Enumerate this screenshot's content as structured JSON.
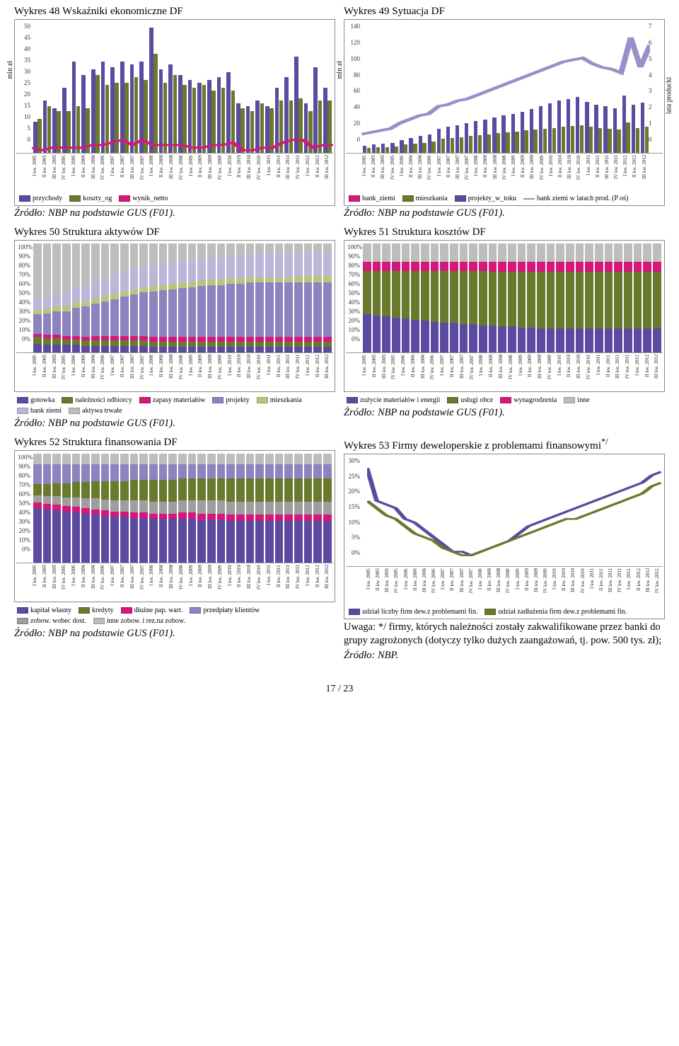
{
  "quarters": [
    "I kw. 2005",
    "II kw. 2005",
    "III kw. 2005",
    "IV kw. 2005",
    "I kw. 2006",
    "II kw. 2006",
    "III kw. 2006",
    "IV kw. 2006",
    "I kw. 2007",
    "II kw. 2007",
    "III kw. 2007",
    "IV kw. 2007",
    "I kw. 2008",
    "II kw. 2008",
    "III kw. 2008",
    "IV kw. 2008",
    "I kw. 2009",
    "II kw. 2009",
    "III kw. 2009",
    "IV kw. 2009",
    "I kw. 2010",
    "II kw. 2010",
    "III kw. 2010",
    "IV kw. 2010",
    "I kw. 2011",
    "II kw. 2011",
    "III kw. 2011",
    "IV kw. 2011",
    "I kw. 2012",
    "II kw. 2012",
    "III kw. 2012"
  ],
  "chart48": {
    "title": "Wykres 48 Wskaźniki ekonomiczne DF",
    "ylabel": "mln zł",
    "ylim": [
      0,
      50
    ],
    "ytick_step": 5,
    "colors": {
      "przychody": "#5b4a9f",
      "koszty": "#6a7a2d",
      "wynik": "#d6177a"
    },
    "series": {
      "przychody": [
        12,
        20,
        17,
        25,
        35,
        30,
        32,
        35,
        33,
        35,
        34,
        35,
        48,
        32,
        34,
        30,
        28,
        27,
        28,
        29,
        31,
        19,
        18,
        20,
        18,
        25,
        29,
        37,
        19,
        33,
        25
      ],
      "koszty": [
        13,
        18,
        16,
        16,
        18,
        17,
        30,
        26,
        27,
        27,
        29,
        28,
        38,
        27,
        30,
        26,
        25,
        26,
        24,
        25,
        24,
        17,
        16,
        19,
        17,
        20,
        20,
        21,
        16,
        20,
        20
      ],
      "wynik": [
        2,
        1,
        2,
        2,
        2,
        2,
        3,
        3,
        4,
        5,
        3,
        5,
        3,
        3,
        3,
        3,
        2,
        2,
        3,
        3,
        4,
        1,
        1,
        2,
        2,
        4,
        5,
        5,
        2,
        3,
        3
      ]
    },
    "legend": [
      [
        "przychody",
        "#5b4a9f"
      ],
      [
        "koszty_og",
        "#6a7a2d"
      ],
      [
        "wynik_netto",
        "#d6177a"
      ]
    ],
    "source": "Źródło: NBP na podstawie GUS (F01)."
  },
  "chart49": {
    "title": "Wykres 49 Sytuacja DF",
    "ylabel": "mln zł",
    "y2label": "lata producki",
    "ylim": [
      0,
      140
    ],
    "ytick_step": 20,
    "y2lim": [
      0,
      7
    ],
    "colors": {
      "bank_ziemi": "#d6177a",
      "projekty": "#5b4a9f",
      "mieszkania": "#6a7a2d",
      "lata": "#9a8fc9"
    },
    "bank_ziemi": [
      22,
      23,
      24,
      26,
      30,
      34,
      36,
      40,
      55,
      60,
      68,
      72,
      78,
      80,
      85,
      90,
      95,
      100,
      105,
      108,
      110,
      112,
      114,
      115,
      112,
      110,
      108,
      105,
      118,
      108,
      110
    ],
    "projekty": [
      8,
      9,
      10,
      11,
      14,
      16,
      18,
      20,
      26,
      28,
      30,
      32,
      34,
      36,
      38,
      40,
      42,
      44,
      47,
      50,
      53,
      56,
      58,
      60,
      55,
      52,
      50,
      48,
      62,
      52,
      54
    ],
    "mieszkania": [
      5,
      6,
      6,
      7,
      9,
      10,
      11,
      12,
      15,
      16,
      17,
      18,
      19,
      20,
      21,
      22,
      23,
      24,
      25,
      26,
      27,
      28,
      29,
      30,
      28,
      27,
      26,
      25,
      33,
      27,
      28
    ],
    "lata": [
      1.0,
      1.1,
      1.2,
      1.3,
      1.6,
      1.8,
      2.0,
      2.1,
      2.5,
      2.6,
      2.8,
      2.9,
      3.1,
      3.3,
      3.5,
      3.7,
      3.9,
      4.1,
      4.3,
      4.5,
      4.7,
      4.9,
      5.0,
      5.1,
      4.8,
      4.6,
      4.5,
      4.3,
      6.2,
      4.6,
      5.8
    ],
    "legend": [
      [
        "bank_ziemi",
        "#d6177a",
        "swatch"
      ],
      [
        "mieszkania",
        "#6a7a2d",
        "swatch"
      ],
      [
        "projekty_w_toku",
        "#5b4a9f",
        "swatch"
      ],
      [
        "bank ziemi w latach prod. (P oś)",
        "#9a8fc9",
        "line"
      ]
    ],
    "source": "Źródło: NBP na podstawie GUS (F01)."
  },
  "chart50": {
    "title": "Wykres 50 Struktura aktywów DF",
    "ylim": [
      0,
      100
    ],
    "ytick_step": 10,
    "ysuffix": "%",
    "stacks": [
      "gotowka",
      "naleznosci",
      "zapasy",
      "projekty",
      "mieszkania",
      "bank_ziemi",
      "aktywa_trwale"
    ],
    "stack_colors": {
      "gotowka": "#5b4a9f",
      "naleznosci": "#6a7a2d",
      "zapasy": "#d6177a",
      "projekty": "#8d83bf",
      "mieszkania": "#b5c77e",
      "bank_ziemi": "#bcb6d9",
      "aktywa_trwale": "#bdbdbd"
    },
    "data": [
      [
        8,
        6,
        3,
        18,
        4,
        10,
        51
      ],
      [
        7,
        6,
        3,
        20,
        4,
        11,
        49
      ],
      [
        7,
        6,
        3,
        22,
        4,
        12,
        46
      ],
      [
        7,
        5,
        3,
        23,
        5,
        13,
        44
      ],
      [
        7,
        5,
        3,
        26,
        5,
        14,
        40
      ],
      [
        6,
        5,
        3,
        28,
        5,
        15,
        38
      ],
      [
        6,
        5,
        4,
        30,
        5,
        16,
        34
      ],
      [
        6,
        5,
        4,
        32,
        5,
        17,
        31
      ],
      [
        6,
        5,
        4,
        34,
        5,
        18,
        28
      ],
      [
        6,
        5,
        4,
        36,
        5,
        18,
        26
      ],
      [
        6,
        5,
        4,
        38,
        5,
        19,
        23
      ],
      [
        6,
        5,
        4,
        40,
        5,
        19,
        21
      ],
      [
        5,
        5,
        4,
        42,
        5,
        19,
        20
      ],
      [
        5,
        5,
        4,
        43,
        5,
        20,
        18
      ],
      [
        5,
        5,
        4,
        44,
        5,
        20,
        17
      ],
      [
        5,
        5,
        4,
        45,
        5,
        20,
        16
      ],
      [
        5,
        5,
        4,
        46,
        5,
        20,
        15
      ],
      [
        5,
        5,
        4,
        47,
        5,
        20,
        14
      ],
      [
        5,
        5,
        4,
        48,
        5,
        20,
        13
      ],
      [
        5,
        5,
        4,
        48,
        5,
        21,
        12
      ],
      [
        5,
        5,
        4,
        49,
        5,
        21,
        11
      ],
      [
        5,
        5,
        4,
        49,
        5,
        21,
        11
      ],
      [
        5,
        5,
        4,
        50,
        5,
        21,
        10
      ],
      [
        5,
        5,
        4,
        50,
        5,
        21,
        10
      ],
      [
        5,
        5,
        4,
        50,
        5,
        21,
        10
      ],
      [
        5,
        5,
        4,
        50,
        5,
        22,
        9
      ],
      [
        5,
        5,
        4,
        50,
        5,
        22,
        9
      ],
      [
        5,
        5,
        4,
        50,
        6,
        22,
        8
      ],
      [
        5,
        5,
        4,
        50,
        6,
        22,
        8
      ],
      [
        5,
        5,
        4,
        50,
        6,
        22,
        8
      ],
      [
        5,
        5,
        4,
        50,
        6,
        22,
        8
      ]
    ],
    "legend": [
      [
        "gotowka",
        "#5b4a9f"
      ],
      [
        "należności odbiorcy",
        "#6a7a2d"
      ],
      [
        "zapasy materiałów",
        "#d6177a"
      ],
      [
        "projekty",
        "#8d83bf"
      ],
      [
        "mieszkania",
        "#b5c77e"
      ],
      [
        "bank ziemi",
        "#bcb6d9"
      ],
      [
        "aktywa trwałe",
        "#bdbdbd"
      ]
    ],
    "source": "Źródło: NBP na podstawie GUS (F01)."
  },
  "chart51": {
    "title": "Wykres 51 Struktura kosztów DF",
    "ylim": [
      0,
      100
    ],
    "ytick_step": 10,
    "ysuffix": "%",
    "stacks": [
      "zuzycie",
      "uslugi",
      "wynagr",
      "inne"
    ],
    "stack_colors": {
      "zuzycie": "#5b4a9f",
      "uslugi": "#6a7a2d",
      "wynagr": "#d6177a",
      "inne": "#bdbdbd"
    },
    "data": [
      [
        35,
        40,
        8,
        17
      ],
      [
        34,
        41,
        8,
        17
      ],
      [
        33,
        42,
        8,
        17
      ],
      [
        32,
        43,
        8,
        17
      ],
      [
        31,
        44,
        8,
        17
      ],
      [
        30,
        45,
        8,
        17
      ],
      [
        29,
        46,
        8,
        17
      ],
      [
        28,
        47,
        8,
        17
      ],
      [
        27,
        48,
        8,
        17
      ],
      [
        27,
        48,
        8,
        17
      ],
      [
        26,
        49,
        8,
        17
      ],
      [
        26,
        49,
        8,
        17
      ],
      [
        25,
        50,
        8,
        17
      ],
      [
        25,
        49,
        9,
        17
      ],
      [
        24,
        50,
        9,
        17
      ],
      [
        24,
        50,
        9,
        17
      ],
      [
        23,
        51,
        9,
        17
      ],
      [
        23,
        51,
        9,
        17
      ],
      [
        22,
        52,
        9,
        17
      ],
      [
        22,
        52,
        9,
        17
      ],
      [
        22,
        52,
        9,
        17
      ],
      [
        22,
        52,
        9,
        17
      ],
      [
        22,
        52,
        9,
        17
      ],
      [
        22,
        52,
        9,
        17
      ],
      [
        22,
        52,
        9,
        17
      ],
      [
        22,
        52,
        9,
        17
      ],
      [
        22,
        52,
        9,
        17
      ],
      [
        22,
        52,
        9,
        17
      ],
      [
        22,
        52,
        9,
        17
      ],
      [
        22,
        52,
        9,
        17
      ],
      [
        22,
        52,
        9,
        17
      ]
    ],
    "legend": [
      [
        "zużycie materiałów i energii",
        "#5b4a9f"
      ],
      [
        "usługi obce",
        "#6a7a2d"
      ],
      [
        "wynagrodzenia",
        "#d6177a"
      ],
      [
        "inne",
        "#bdbdbd"
      ]
    ],
    "source": "Źródło: NBP na podstawie GUS (F01)."
  },
  "chart52": {
    "title": "Wykres 52 Struktura finansowania DF",
    "ylim": [
      0,
      100
    ],
    "ytick_step": 10,
    "ysuffix": "%",
    "stacks": [
      "kapital",
      "dluzne",
      "zobow_dost",
      "kredyty",
      "przedplaty",
      "zobow_rez"
    ],
    "stack_colors": {
      "kapital": "#5b4a9f",
      "dluzne": "#d6177a",
      "zobow_dost": "#9e9e9e",
      "kredyty": "#6a7a2d",
      "przedplaty": "#8d83bf",
      "zobow_rez": "#bdbdbd"
    },
    "data": [
      [
        50,
        5,
        7,
        10,
        18,
        10
      ],
      [
        49,
        5,
        7,
        11,
        18,
        10
      ],
      [
        48,
        5,
        8,
        12,
        17,
        10
      ],
      [
        47,
        5,
        8,
        13,
        17,
        10
      ],
      [
        46,
        5,
        9,
        14,
        16,
        10
      ],
      [
        45,
        5,
        9,
        15,
        16,
        10
      ],
      [
        44,
        5,
        10,
        16,
        15,
        10
      ],
      [
        43,
        5,
        10,
        17,
        15,
        10
      ],
      [
        42,
        5,
        10,
        18,
        15,
        10
      ],
      [
        42,
        5,
        10,
        18,
        15,
        10
      ],
      [
        41,
        5,
        11,
        19,
        14,
        10
      ],
      [
        41,
        5,
        11,
        19,
        14,
        10
      ],
      [
        40,
        5,
        11,
        20,
        14,
        10
      ],
      [
        40,
        5,
        11,
        20,
        14,
        10
      ],
      [
        40,
        5,
        11,
        20,
        14,
        10
      ],
      [
        40,
        6,
        11,
        20,
        13,
        10
      ],
      [
        40,
        6,
        11,
        20,
        13,
        10
      ],
      [
        39,
        6,
        12,
        20,
        13,
        10
      ],
      [
        39,
        6,
        12,
        20,
        13,
        10
      ],
      [
        39,
        6,
        12,
        20,
        13,
        10
      ],
      [
        38,
        6,
        12,
        21,
        13,
        10
      ],
      [
        38,
        6,
        12,
        21,
        13,
        10
      ],
      [
        38,
        6,
        12,
        21,
        13,
        10
      ],
      [
        38,
        6,
        12,
        21,
        13,
        10
      ],
      [
        38,
        6,
        12,
        21,
        13,
        10
      ],
      [
        38,
        6,
        12,
        21,
        13,
        10
      ],
      [
        38,
        6,
        12,
        21,
        13,
        10
      ],
      [
        38,
        6,
        12,
        21,
        13,
        10
      ],
      [
        38,
        6,
        12,
        21,
        13,
        10
      ],
      [
        38,
        6,
        12,
        21,
        13,
        10
      ],
      [
        38,
        6,
        12,
        21,
        13,
        10
      ]
    ],
    "legend": [
      [
        "kapitał własny",
        "#5b4a9f"
      ],
      [
        "kredyty",
        "#6a7a2d"
      ],
      [
        "dłużne pap. wart.",
        "#d6177a"
      ],
      [
        "przedpłaty klientów",
        "#8d83bf"
      ],
      [
        "zobow. wobec dost.",
        "#9e9e9e"
      ],
      [
        "inne zobow. i rez.na zobow.",
        "#bdbdbd"
      ]
    ],
    "source": "Źródło: NBP na podstawie GUS (F01)."
  },
  "chart53": {
    "title": "Wykres 53 Firmy deweloperskie z problemami finansowymi",
    "title_sup": "*/",
    "ylim": [
      0,
      30
    ],
    "ytick_step": 5,
    "ysuffix": "%",
    "colors": {
      "liczba": "#5b4a9f",
      "zadluzenie": "#6a7a2d"
    },
    "liczba": [
      27,
      18,
      17,
      16,
      13,
      12,
      10,
      8,
      6,
      4,
      4,
      3,
      4,
      5,
      6,
      7,
      9,
      11,
      12,
      13,
      14,
      15,
      16,
      17,
      18,
      19,
      20,
      21,
      22,
      23,
      25,
      26
    ],
    "zadluzenie": [
      18,
      16,
      14,
      13,
      11,
      9,
      8,
      7,
      5,
      4,
      3,
      3,
      4,
      5,
      6,
      7,
      8,
      9,
      10,
      11,
      12,
      13,
      13,
      14,
      15,
      16,
      17,
      18,
      19,
      20,
      22,
      23
    ],
    "x_extra": "IV kw. 2012",
    "legend": [
      [
        "udział liczby firm dew.z problemami fin.",
        "#5b4a9f"
      ],
      [
        "udział zadłużenia firm dew.z problemami fin.",
        "#6a7a2d"
      ]
    ],
    "note": "Uwaga: */ firmy, których należności zostały zakwalifikowane przez banki do grupy zagrożonych (dotyczy tylko dużych zaangażowań, tj. pow. 500 tys. zł);",
    "note2": "Źródło: NBP."
  },
  "page_number": "17 / 23"
}
